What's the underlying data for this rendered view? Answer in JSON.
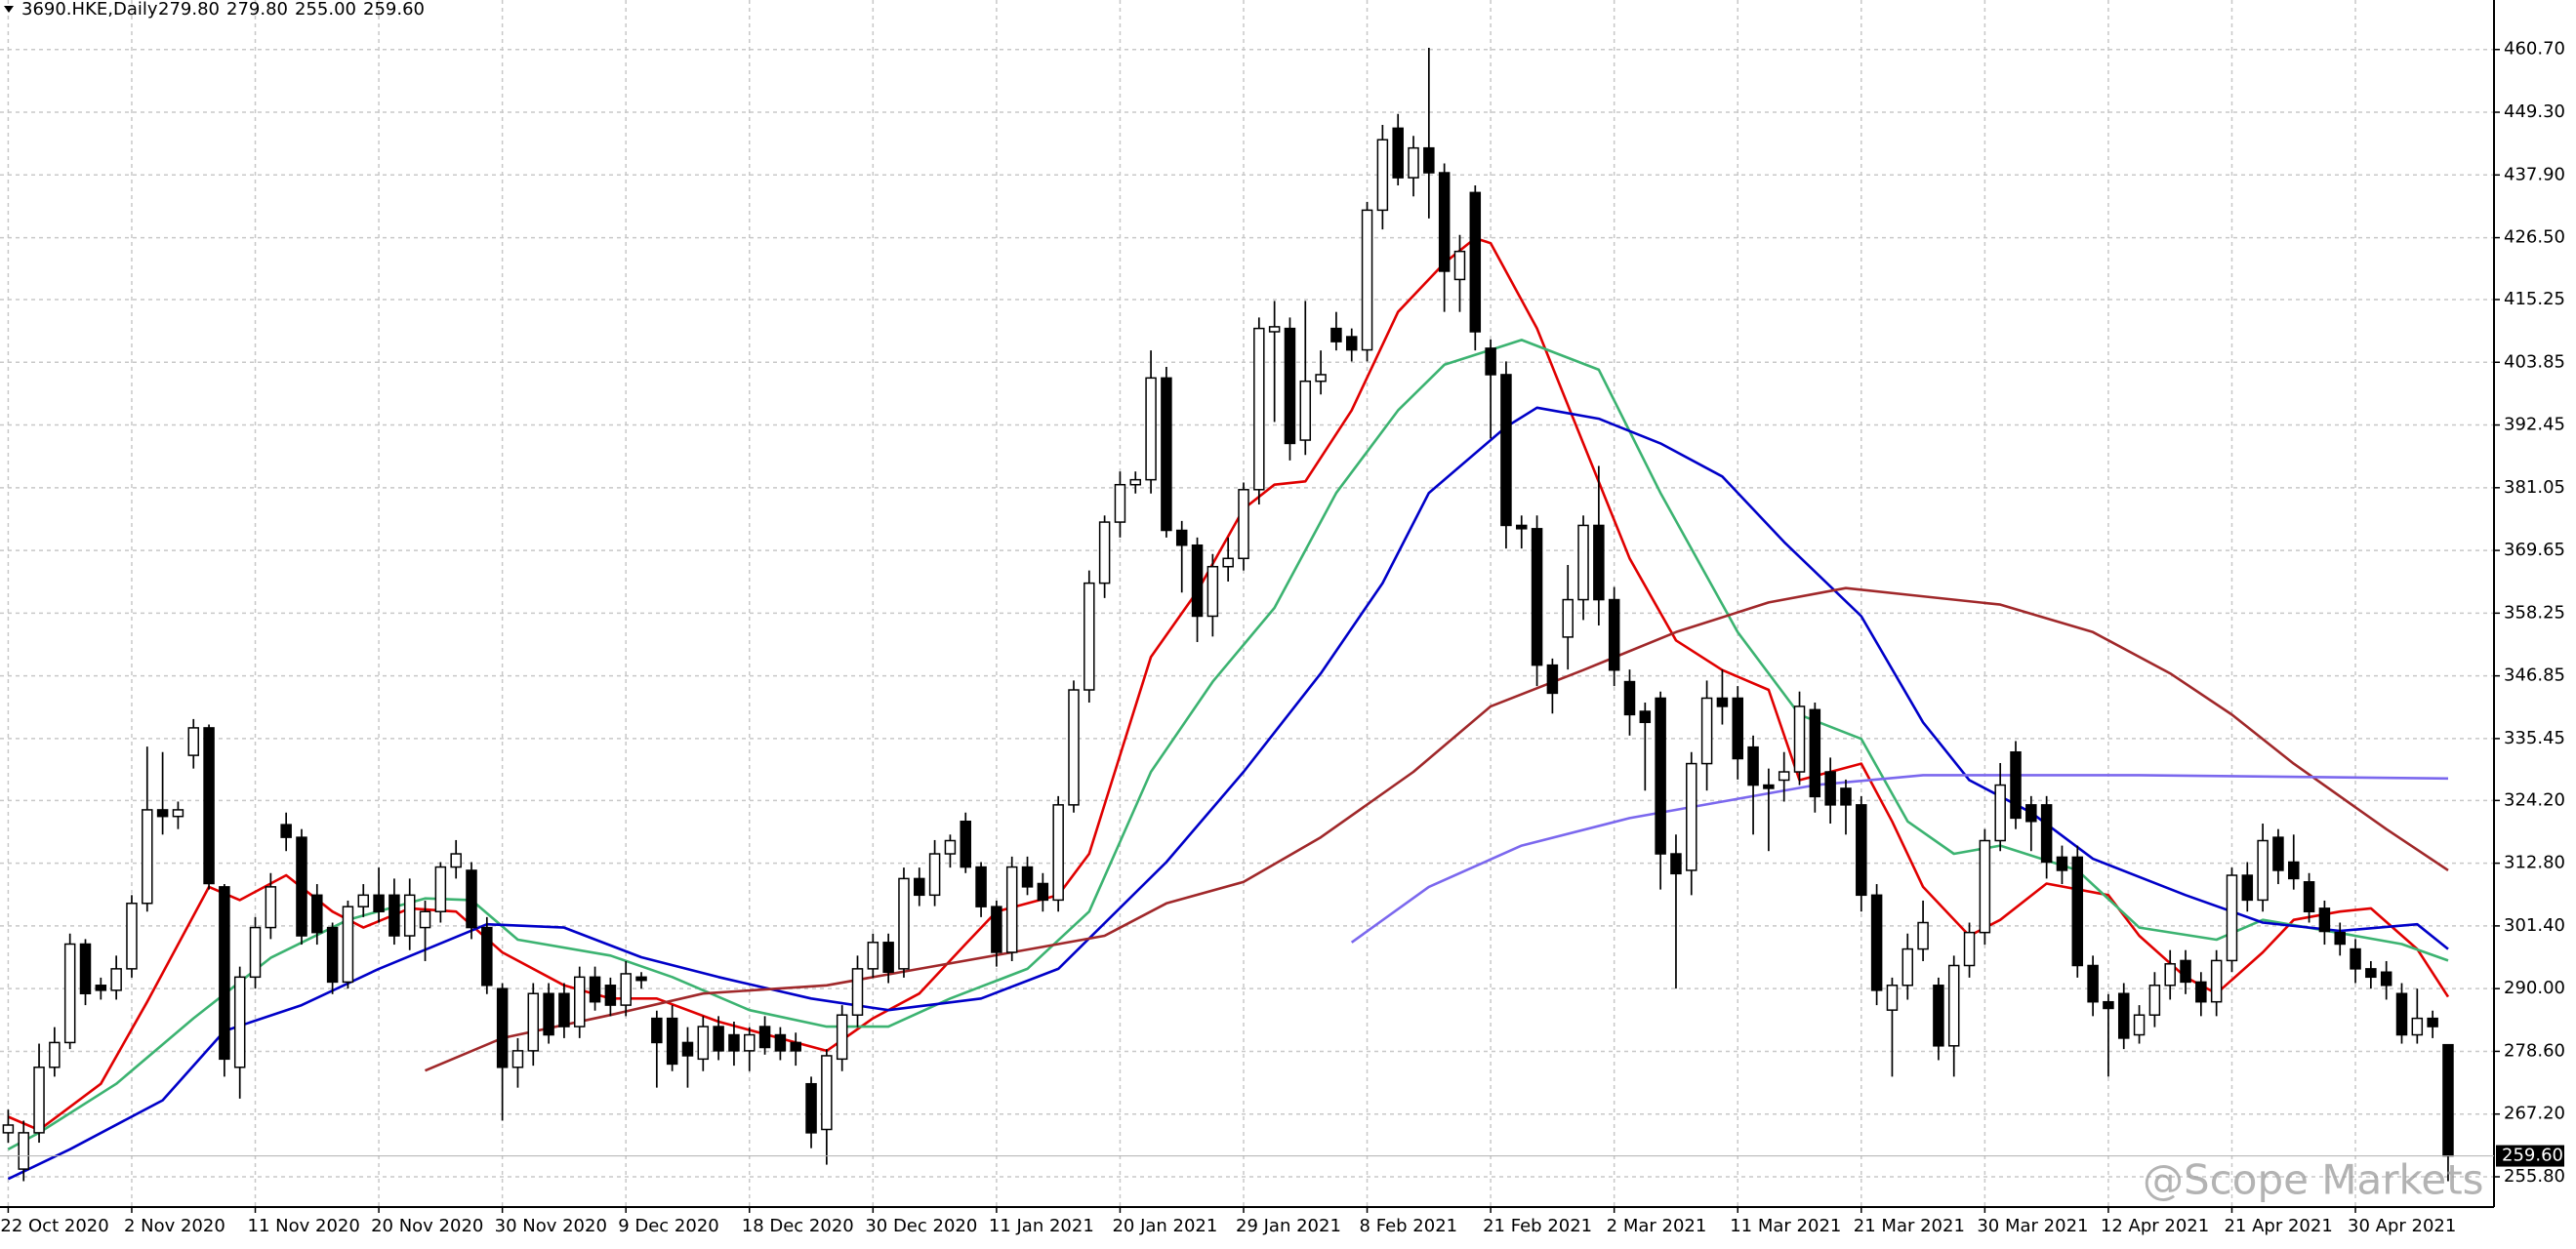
{
  "chart_data": {
    "type": "candlestick",
    "title": "3690.HKE,Daily",
    "title_values": [
      "279.80",
      "279.80",
      "255.00",
      "259.60"
    ],
    "last_price_label": "259.60",
    "watermark": "@Scope Markets",
    "grid": true,
    "up_color": "#ffffff",
    "down_color": "#000000",
    "ylim": [
      250.3,
      469.7
    ],
    "yticks": [
      {
        "value": 460.7,
        "label": "460.70"
      },
      {
        "value": 449.3,
        "label": "449.30"
      },
      {
        "value": 437.9,
        "label": "437.90"
      },
      {
        "value": 426.5,
        "label": "426.50"
      },
      {
        "value": 415.25,
        "label": "415.25"
      },
      {
        "value": 403.85,
        "label": "403.85"
      },
      {
        "value": 392.45,
        "label": "392.45"
      },
      {
        "value": 381.05,
        "label": "381.05"
      },
      {
        "value": 369.65,
        "label": "369.65"
      },
      {
        "value": 358.25,
        "label": "358.25"
      },
      {
        "value": 346.85,
        "label": "346.85"
      },
      {
        "value": 335.45,
        "label": "335.45"
      },
      {
        "value": 324.2,
        "label": "324.20"
      },
      {
        "value": 312.8,
        "label": "312.80"
      },
      {
        "value": 301.4,
        "label": "301.40"
      },
      {
        "value": 290,
        "label": "290.00"
      },
      {
        "value": 278.6,
        "label": "278.60"
      },
      {
        "value": 267.2,
        "label": "267.20"
      },
      {
        "value": 255.8,
        "label": "255.80"
      }
    ],
    "categories": [
      "22 Oct 2020",
      null,
      null,
      null,
      null,
      null,
      null,
      null,
      "2 Nov 2020",
      null,
      null,
      null,
      null,
      null,
      null,
      null,
      "11 Nov 2020",
      null,
      null,
      null,
      null,
      null,
      null,
      null,
      "20 Nov 2020",
      null,
      null,
      null,
      null,
      null,
      null,
      null,
      "30 Nov 2020",
      null,
      null,
      null,
      null,
      null,
      null,
      null,
      "9 Dec 2020",
      null,
      null,
      null,
      null,
      null,
      null,
      null,
      "18 Dec 2020",
      null,
      null,
      null,
      null,
      null,
      null,
      null,
      "30 Dec 2020",
      null,
      null,
      null,
      null,
      null,
      null,
      null,
      "11 Jan 2021",
      null,
      null,
      null,
      null,
      null,
      null,
      null,
      "20 Jan 2021",
      null,
      null,
      null,
      null,
      null,
      null,
      null,
      "29 Jan 2021",
      null,
      null,
      null,
      null,
      null,
      null,
      null,
      "8 Feb 2021",
      null,
      null,
      null,
      null,
      null,
      null,
      null,
      "21 Feb 2021",
      null,
      null,
      null,
      null,
      null,
      null,
      null,
      "2 Mar 2021",
      null,
      null,
      null,
      null,
      null,
      null,
      null,
      "11 Mar 2021",
      null,
      null,
      null,
      null,
      null,
      null,
      null,
      "21 Mar 2021",
      null,
      null,
      null,
      null,
      null,
      null,
      null,
      "30 Mar 2021",
      null,
      null,
      null,
      null,
      null,
      null,
      null,
      "12 Apr 2021",
      null,
      null,
      null,
      null,
      null,
      null,
      null,
      "21 Apr 2021",
      null,
      null,
      null,
      null,
      null,
      null,
      null,
      "30 Apr 2021",
      null,
      null,
      null,
      null,
      null,
      null
    ],
    "open": [
      263.8,
      257.2,
      263.8,
      275.7,
      280.2,
      298.1,
      290.6,
      289.7,
      293.6,
      305.5,
      322.5,
      321.3,
      332.4,
      337.4,
      308.5,
      275.7,
      292.1,
      301.1,
      319.8,
      317.5,
      307,
      301.1,
      291.2,
      304.9,
      307,
      307,
      299.6,
      301.1,
      304,
      312.1,
      311.5,
      301.1,
      290,
      275.7,
      278.7,
      289.1,
      289.1,
      283.1,
      292.1,
      290.6,
      287,
      292.1,
      284.6,
      284.6,
      280.2,
      277.2,
      283.1,
      281.6,
      278.7,
      283.1,
      281.6,
      280.2,
      272.7,
      264.4,
      277.2,
      285.2,
      293.6,
      298.4,
      293.6,
      310,
      307,
      314.5,
      320.4,
      312.1,
      304.9,
      296.6,
      312.1,
      309.1,
      306.1,
      323.4,
      344.3,
      363.7,
      374.8,
      381.6,
      382.5,
      401,
      373.3,
      370.6,
      357.7,
      366.7,
      368.2,
      380.7,
      409.4,
      410,
      389.7,
      400.4,
      410,
      408.5,
      406.1,
      431.5,
      446.4,
      437.4,
      442.8,
      438.3,
      418.9,
      434.7,
      406.4,
      401.6,
      374.2,
      373.6,
      348.8,
      353.9,
      360.7,
      374.2,
      360.7,
      345.8,
      340.4,
      342.8,
      314.5,
      311.5,
      330.9,
      342.8,
      342.8,
      333.9,
      327,
      327.9,
      329.4,
      340.7,
      329.4,
      326.4,
      323.4,
      307,
      286.1,
      290.6,
      297.2,
      290.6,
      279.6,
      294.2,
      300.2,
      316.9,
      333,
      323.4,
      323.4,
      313.9,
      313.9,
      294.2,
      287.6,
      289.1,
      281.6,
      285.2,
      290.6,
      295.1,
      291.2,
      287.6,
      295.1,
      310.6,
      306.1,
      317.5,
      313,
      309.4,
      304.6,
      300.2,
      297.2,
      293.6,
      293,
      289.1,
      281.6,
      284.6,
      279.8
    ],
    "high": [
      268,
      266,
      280,
      283,
      300,
      299,
      292,
      296,
      307,
      334,
      333,
      324,
      339,
      338,
      309,
      294,
      303,
      311,
      322,
      319,
      309,
      302,
      306,
      309,
      312,
      310,
      310,
      306,
      313,
      317,
      313,
      303,
      291,
      281,
      291,
      291,
      291,
      294,
      294,
      292,
      295,
      293,
      286,
      287,
      283,
      285,
      285,
      284,
      283,
      285,
      283,
      282,
      274,
      279,
      287,
      296,
      300,
      300,
      312,
      312,
      317,
      318,
      322,
      313,
      306,
      314,
      314,
      311,
      325,
      346,
      366,
      376,
      384,
      384,
      406,
      403,
      375,
      372,
      369,
      372,
      382,
      412,
      415,
      412,
      415,
      406,
      413,
      410,
      433,
      447,
      449,
      445,
      461,
      440,
      427,
      436,
      408,
      404,
      376,
      376,
      350,
      367,
      376,
      385,
      363,
      348,
      342,
      344,
      318,
      333,
      346,
      348,
      345,
      336,
      330,
      333,
      344,
      342,
      332,
      328,
      325,
      309,
      292,
      300,
      306,
      292,
      296,
      302,
      319,
      331,
      335,
      325,
      325,
      316,
      316,
      296,
      289,
      291,
      287,
      293,
      297,
      297,
      293,
      297,
      312,
      313,
      320,
      319,
      318,
      311,
      306,
      302,
      299,
      295,
      295,
      291,
      290,
      286,
      279.8
    ],
    "low": [
      262,
      255,
      262,
      274,
      279,
      287,
      288,
      288,
      292,
      304,
      318,
      319,
      330,
      308,
      274,
      270,
      290,
      299,
      315,
      298,
      298,
      289,
      290,
      303,
      302,
      298,
      297,
      295,
      302,
      310,
      299,
      289,
      266,
      272,
      276,
      280,
      281,
      281,
      286,
      285,
      285,
      290,
      272,
      275,
      272,
      275,
      277,
      276,
      275,
      278,
      277,
      276,
      261,
      258,
      275,
      283,
      292,
      291,
      292,
      305,
      305,
      312,
      311,
      303,
      294,
      295,
      307,
      304,
      304,
      322,
      342,
      361,
      372,
      380,
      380,
      372,
      362,
      353,
      354,
      364,
      366,
      378,
      393,
      386,
      387,
      398,
      406,
      404,
      404,
      428,
      436,
      434,
      430,
      413,
      413,
      406,
      390,
      370,
      370,
      345,
      340,
      348,
      357,
      356,
      345,
      336,
      326,
      308,
      290,
      307,
      326,
      338,
      328,
      318,
      315,
      324,
      327,
      322,
      320,
      318,
      304,
      287,
      274,
      288,
      295,
      277,
      274,
      292,
      298,
      315,
      319,
      315,
      310,
      309,
      292,
      285,
      274,
      279,
      280,
      283,
      288,
      289,
      285,
      285,
      293,
      304,
      304,
      309,
      308,
      302,
      298,
      296,
      291,
      290,
      288,
      280,
      280,
      281,
      255
    ],
    "close": [
      265.2,
      263.8,
      275.7,
      280.2,
      298.1,
      289.1,
      289.7,
      293.6,
      305.5,
      322.5,
      321.3,
      322.5,
      337.4,
      309.1,
      277.2,
      292.1,
      301.1,
      308.5,
      317.5,
      299.6,
      300.2,
      291.2,
      304.9,
      307,
      304,
      299.6,
      307,
      304,
      312.1,
      314.5,
      301.1,
      290.6,
      275.7,
      278.7,
      289.1,
      281.6,
      283.1,
      292.1,
      287.6,
      287,
      292.7,
      291.5,
      280.2,
      276.3,
      277.8,
      283.1,
      278.7,
      278.7,
      281.6,
      279.3,
      278.7,
      278.7,
      263.8,
      277.8,
      285.2,
      293.6,
      298.4,
      293,
      310,
      307,
      314.5,
      316.9,
      312.1,
      304.9,
      296.6,
      312.1,
      308.5,
      306.1,
      323.4,
      344.3,
      363.7,
      374.8,
      381.6,
      382.5,
      401,
      373.3,
      370.6,
      357.7,
      366.7,
      368.2,
      380.7,
      410,
      410.3,
      389.1,
      400.4,
      401.6,
      407.6,
      406.1,
      431.5,
      444.3,
      437.4,
      442.8,
      438.3,
      420.4,
      424,
      409.4,
      401.6,
      374.2,
      373.6,
      348.8,
      343.7,
      360.7,
      374.2,
      360.7,
      347.9,
      339.8,
      338.4,
      314.5,
      310.9,
      330.9,
      342.8,
      341.3,
      331.8,
      327,
      326.4,
      329.4,
      341.3,
      324.9,
      323.4,
      323.4,
      307,
      289.7,
      290.6,
      297.2,
      302,
      279.6,
      294.2,
      300.2,
      316.9,
      327,
      321,
      320.4,
      313,
      311.5,
      294.2,
      287.6,
      286.4,
      281,
      285.2,
      290.6,
      294.5,
      291.2,
      287.6,
      295.1,
      310.6,
      306.1,
      316.9,
      311.5,
      310,
      304,
      300.4,
      298.1,
      293.6,
      292.1,
      290.6,
      281.6,
      284.6,
      283.1,
      259.6
    ],
    "lines": [
      {
        "color": "#e00000",
        "x": [
          0,
          2,
          6,
          9,
          13,
          15,
          18,
          21,
          23,
          26,
          29,
          32,
          36,
          39,
          42,
          46,
          51,
          53,
          56,
          59,
          62,
          64,
          68,
          70,
          72,
          74,
          77,
          80,
          82,
          84,
          87,
          90,
          93,
          95,
          96,
          99,
          102,
          105,
          108,
          111,
          114,
          116,
          120,
          122,
          124,
          127,
          129,
          132,
          136,
          138,
          141,
          143,
          146,
          148,
          151,
          153,
          156,
          158
        ],
        "values": [
          266.7,
          264.3,
          272.7,
          287.6,
          308.5,
          306.1,
          310.6,
          304,
          301.1,
          304.6,
          304,
          296.6,
          290.6,
          288.2,
          288.2,
          284,
          280.2,
          278.7,
          284.6,
          289.1,
          298.1,
          304,
          307,
          314.5,
          332.4,
          350.3,
          362.2,
          377.2,
          381.6,
          382.2,
          395.1,
          413,
          421.9,
          426.4,
          425.5,
          410,
          389.1,
          368.2,
          353.3,
          347.9,
          344.3,
          327.9,
          330.9,
          320.4,
          308.5,
          299.6,
          302.5,
          309.1,
          307,
          299.6,
          292.1,
          289.1,
          296.6,
          302.5,
          304,
          304.6,
          297.2,
          288.5
        ]
      },
      {
        "color": "#3cb371",
        "x": [
          0,
          2,
          7,
          12,
          17,
          22,
          27,
          30,
          33,
          39,
          43,
          48,
          53,
          57,
          61,
          66,
          70,
          74,
          78,
          82,
          86,
          90,
          93,
          98,
          103,
          107,
          112,
          116,
          120,
          123,
          126,
          129,
          134,
          138,
          143,
          146,
          151,
          155,
          158
        ],
        "values": [
          260.8,
          263.8,
          272.7,
          284.6,
          295.6,
          302.5,
          306.4,
          306.1,
          298.9,
          296,
          292.1,
          286.1,
          283.1,
          283.1,
          288.2,
          293.6,
          304,
          329.4,
          345.8,
          359.2,
          380.1,
          395.1,
          403.4,
          407.9,
          402.5,
          380.1,
          354.8,
          339.8,
          335.4,
          320.4,
          314.5,
          316,
          311.5,
          301.1,
          298.9,
          302.5,
          300.1,
          298.1,
          295.1
        ]
      },
      {
        "color": "#0000c8",
        "x": [
          0,
          4,
          10,
          14,
          19,
          24,
          31,
          36,
          41,
          46,
          52,
          57,
          63,
          68,
          75,
          80,
          85,
          89,
          92,
          97,
          99,
          103,
          107,
          111,
          115,
          120,
          124,
          127,
          131,
          135,
          141,
          146,
          151,
          156,
          158
        ],
        "values": [
          255.4,
          260.8,
          269.7,
          282.3,
          287,
          293.6,
          301.7,
          301.1,
          295.7,
          292.1,
          288.2,
          286.1,
          288.2,
          293.6,
          313,
          329.4,
          347.3,
          363.7,
          380.1,
          392.1,
          395.6,
          393.6,
          389.1,
          383.1,
          371.2,
          357.7,
          338.4,
          327.9,
          322,
          313.6,
          307,
          302,
          300.5,
          301.7,
          297.2
        ]
      },
      {
        "color": "#a0282a",
        "x": [
          27,
          32,
          39,
          45,
          53,
          59,
          65,
          71,
          75,
          80,
          85,
          91,
          96,
          102,
          108,
          114,
          119,
          123,
          129,
          135,
          140,
          144,
          148,
          154,
          158
        ],
        "values": [
          275.1,
          281,
          285.2,
          289.1,
          290.6,
          293.6,
          296.6,
          299.6,
          305.5,
          309.4,
          317.5,
          329.4,
          341.3,
          347.9,
          354.8,
          360.2,
          362.8,
          361.6,
          359.8,
          354.8,
          347.3,
          339.8,
          330.9,
          319,
          311.5
        ]
      },
      {
        "color": "#7b68ee",
        "x": [
          87,
          92,
          98,
          105,
          111,
          117,
          124,
          138,
          158
        ],
        "values": [
          298.4,
          308.5,
          316,
          321,
          324,
          327,
          328.8,
          328.8,
          328.2
        ]
      }
    ]
  }
}
